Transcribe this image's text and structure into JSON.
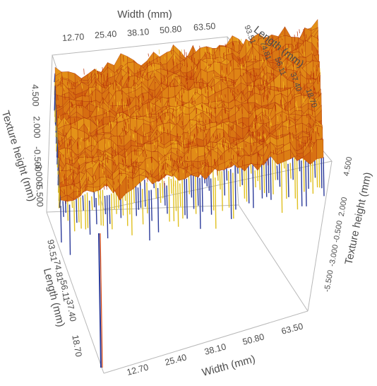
{
  "chart_data": {
    "type": "surface-3d",
    "title": "",
    "axes": {
      "width": {
        "label": "Width (mm)",
        "ticks": [
          "12.70",
          "25.40",
          "38.10",
          "50.80",
          "63.50"
        ],
        "range": [
          0,
          76.2
        ]
      },
      "length": {
        "label": "Length (mm)",
        "ticks": [
          "93.51",
          "74.81",
          "56.11",
          "37.40",
          "18.70"
        ],
        "range": [
          0,
          110
        ]
      },
      "height": {
        "label": "Texture height (mm)",
        "ticks": [
          "4.500",
          "2.000",
          "-0.500",
          "-3.000",
          "-5.500"
        ],
        "range": [
          -6.5,
          5.5
        ]
      }
    },
    "colormap": [
      "#1e2d8c",
      "#3a8a4a",
      "#e8d020",
      "#f0a020",
      "#d84810",
      "#b83008"
    ],
    "grid": false,
    "legend": "none"
  }
}
